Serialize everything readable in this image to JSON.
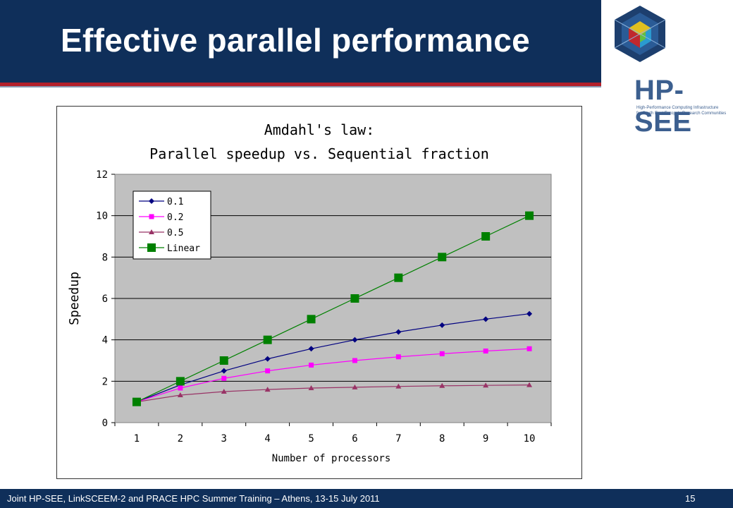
{
  "slide": {
    "title": "Effective parallel performance",
    "logo_text": "HP-SEE",
    "logo_subtitle_1": "High-Performance Computing Infrastructure",
    "logo_subtitle_2": "for South East Europe's Research Communities",
    "footer_text": "Joint HP-SEE, LinkSCEEM-2 and PRACE HPC Summer Training – Athens, 13-15 July 2011",
    "page_number": "15"
  },
  "colors": {
    "header_bg": "#0f2f5a",
    "accent_red": "#b3202a",
    "plot_bg": "#c0c0c0"
  },
  "chart_data": {
    "type": "line",
    "title": "Amdahl's law:",
    "subtitle": "Parallel speedup vs. Sequential fraction",
    "xlabel": "Number of processors",
    "ylabel": "Speedup",
    "x": [
      1,
      2,
      3,
      4,
      5,
      6,
      7,
      8,
      9,
      10
    ],
    "xlim": [
      1,
      10
    ],
    "ylim": [
      0,
      12
    ],
    "yticks": [
      0,
      2,
      4,
      6,
      8,
      10,
      12
    ],
    "grid": true,
    "legend": "top-left",
    "series": [
      {
        "name": "0.1",
        "color": "#000080",
        "marker": "diamond",
        "values": [
          1,
          1.82,
          2.5,
          3.08,
          3.57,
          4.0,
          4.38,
          4.71,
          5.0,
          5.26
        ]
      },
      {
        "name": "0.2",
        "color": "#ff00ff",
        "marker": "square",
        "values": [
          1,
          1.67,
          2.14,
          2.5,
          2.78,
          3.0,
          3.18,
          3.33,
          3.46,
          3.57
        ]
      },
      {
        "name": "0.5",
        "color": "#993366",
        "marker": "triangle",
        "values": [
          1,
          1.33,
          1.5,
          1.6,
          1.67,
          1.71,
          1.75,
          1.78,
          1.8,
          1.82
        ]
      },
      {
        "name": "Linear",
        "color": "#008000",
        "marker": "square-large",
        "values": [
          1,
          2,
          3,
          4,
          5,
          6,
          7,
          8,
          9,
          10
        ]
      }
    ]
  }
}
